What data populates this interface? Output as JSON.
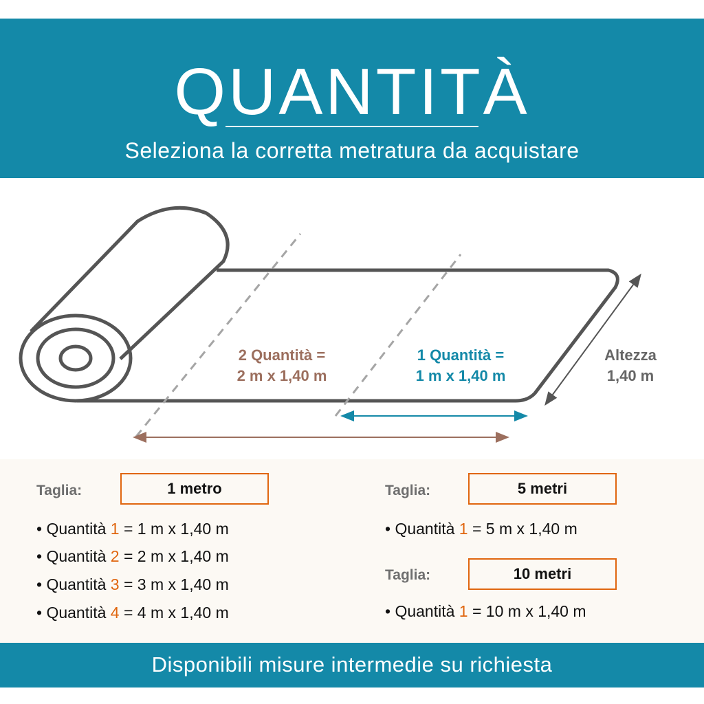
{
  "header": {
    "title": "QUANTITÀ",
    "subtitle": "Seleziona la corretta metratura da acquistare"
  },
  "diagram": {
    "label_two": {
      "line1": "2 Quantità =",
      "line2": "2 m x 1,40 m",
      "color": "#9c6f5e"
    },
    "label_one": {
      "line1": "1 Quantità =",
      "line2": "1 m x 1,40 m",
      "color": "#1489a8"
    },
    "height_label": {
      "line1": "Altezza",
      "line2": "1,40 m"
    }
  },
  "sizes": [
    {
      "label": "Taglia:",
      "value": "1 metro",
      "items": [
        {
          "prefix": "• Quantità ",
          "qty": "1",
          "suffix": " = 1 m x 1,40 m"
        },
        {
          "prefix": "• Quantità ",
          "qty": "2",
          "suffix": " = 2 m x 1,40 m"
        },
        {
          "prefix": "• Quantità ",
          "qty": "3",
          "suffix": " = 3 m x 1,40 m"
        },
        {
          "prefix": "• Quantità ",
          "qty": "4",
          "suffix": " = 4 m x 1,40 m"
        }
      ]
    },
    {
      "label": "Taglia:",
      "value": "5 metri",
      "items": [
        {
          "prefix": "• Quantità ",
          "qty": "1",
          "suffix": " = 5 m x 1,40 m"
        }
      ]
    },
    {
      "label": "Taglia:",
      "value": "10 metri",
      "items": [
        {
          "prefix": "• Quantità ",
          "qty": "1",
          "suffix": " = 10 m x 1,40 m"
        }
      ]
    }
  ],
  "footer": {
    "text": "Disponibili misure intermedie su richiesta"
  },
  "colors": {
    "teal": "#1489a8",
    "brown": "#9c6f5e",
    "orange": "#e0660f",
    "cream": "#fcf9f4"
  }
}
